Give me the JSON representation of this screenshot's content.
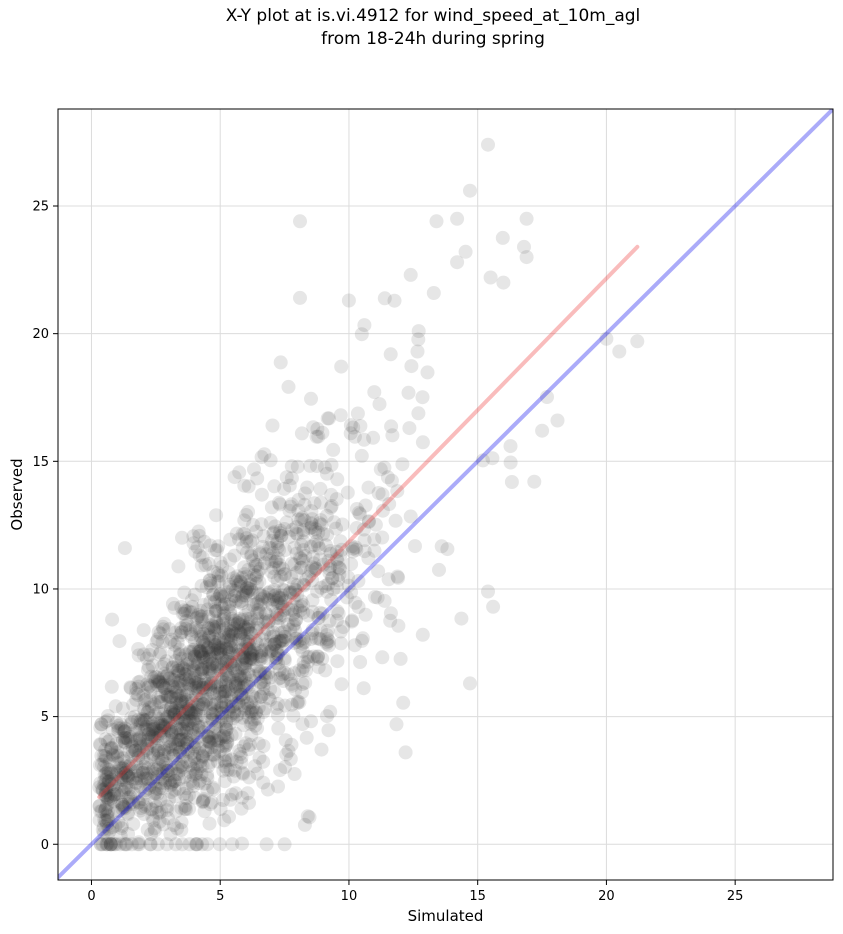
{
  "chart_data": {
    "type": "scatter",
    "title": "X-Y plot at is.vi.4912 for wind_speed_at_10m_agl",
    "subtitle": "from 18-24h during spring",
    "xlabel": "Simulated",
    "ylabel": "Observed",
    "xlim": [
      -1.3,
      28.8
    ],
    "ylim": [
      -1.4,
      28.8
    ],
    "xticks": [
      0,
      5,
      10,
      15,
      20,
      25
    ],
    "yticks": [
      0,
      5,
      10,
      15,
      20,
      25
    ],
    "grid": true,
    "point_color": "#333333",
    "point_opacity": 0.12,
    "lines": [
      {
        "color": "#0000ee",
        "from": [
          -1.3,
          -1.3
        ],
        "to": [
          28.8,
          28.8
        ]
      },
      {
        "color": "#ee3333",
        "from": [
          0.3,
          1.85
        ],
        "to": [
          21.2,
          23.4
        ]
      }
    ],
    "n_points": 1900,
    "notable_points": [
      {
        "x": 15.4,
        "y": 27.4
      },
      {
        "x": 14.7,
        "y": 25.6
      },
      {
        "x": 14.2,
        "y": 24.5
      },
      {
        "x": 13.4,
        "y": 24.4
      },
      {
        "x": 8.1,
        "y": 24.4
      },
      {
        "x": 16.9,
        "y": 24.5
      },
      {
        "x": 16.8,
        "y": 23.4
      },
      {
        "x": 16.9,
        "y": 23.0
      },
      {
        "x": 14.2,
        "y": 22.8
      },
      {
        "x": 15.5,
        "y": 22.2
      },
      {
        "x": 12.4,
        "y": 22.3
      },
      {
        "x": 16.0,
        "y": 22.0
      },
      {
        "x": 8.1,
        "y": 21.4
      },
      {
        "x": 10.0,
        "y": 21.3
      },
      {
        "x": 21.2,
        "y": 19.7
      },
      {
        "x": 20.5,
        "y": 19.3
      },
      {
        "x": 20.0,
        "y": 19.8
      },
      {
        "x": 18.1,
        "y": 16.6
      },
      {
        "x": 17.2,
        "y": 14.2
      },
      {
        "x": 12.2,
        "y": 3.6
      },
      {
        "x": 8.4,
        "y": 1.1
      },
      {
        "x": 4.3,
        "y": 0.0
      },
      {
        "x": 4.5,
        "y": 0.0
      },
      {
        "x": 4.1,
        "y": 0.0
      },
      {
        "x": 1.3,
        "y": 11.6
      },
      {
        "x": 0.8,
        "y": 8.8
      },
      {
        "x": 0.5,
        "y": 2.5
      },
      {
        "x": 0.6,
        "y": 0.0
      },
      {
        "x": 1.8,
        "y": 0.0
      },
      {
        "x": 2.3,
        "y": 0.0
      },
      {
        "x": 6.8,
        "y": 0.0
      },
      {
        "x": 7.5,
        "y": 0.0
      },
      {
        "x": 14.7,
        "y": 6.3
      },
      {
        "x": 15.4,
        "y": 9.9
      },
      {
        "x": 15.6,
        "y": 9.3
      },
      {
        "x": 17.5,
        "y": 16.2
      }
    ]
  }
}
